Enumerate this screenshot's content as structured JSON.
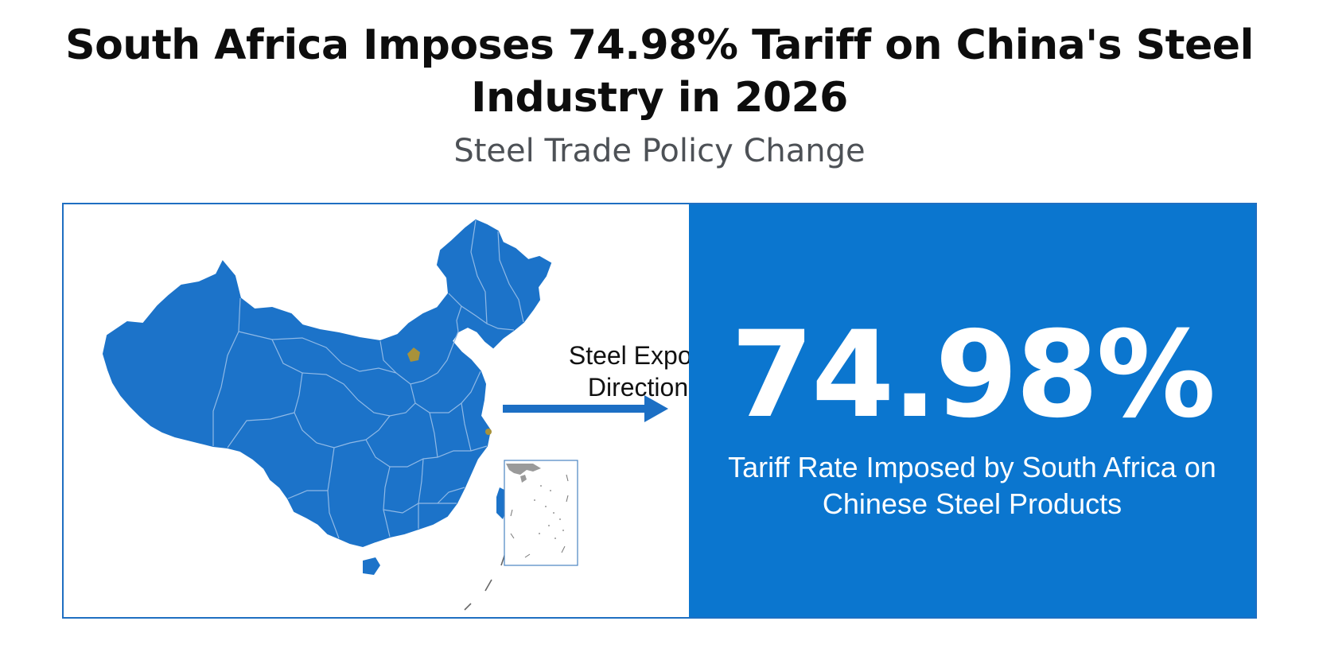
{
  "header": {
    "title": "South Africa Imposes 74.98% Tariff on China's Steel Industry in 2026",
    "subtitle": "Steel Trade Policy Change"
  },
  "map": {
    "region": "China",
    "fill_color": "#1c73c9",
    "highlight_color": "#a8923a",
    "arrow_label": "Steel Export Direction",
    "arrow_color": "#1c6fc4"
  },
  "stat": {
    "value": "74.98%",
    "caption": "Tariff Rate Imposed by South Africa on Chinese Steel Products",
    "panel_color": "#0b76cf",
    "text_color": "#ffffff"
  }
}
